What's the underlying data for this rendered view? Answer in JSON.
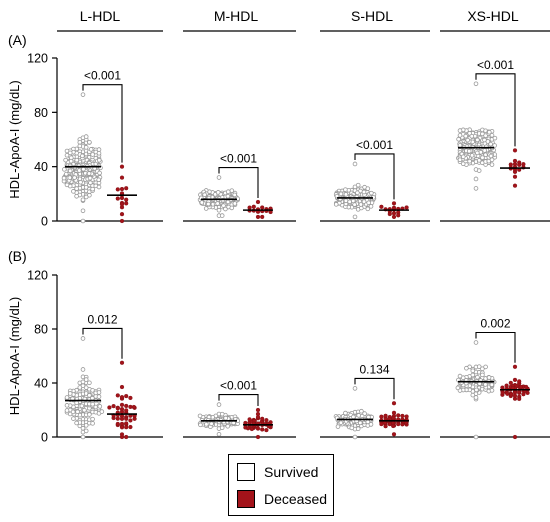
{
  "colors": {
    "survived": "#ffffff",
    "deceased": "#a3131a",
    "outline": "#9a9a9a",
    "axis": "#000000"
  },
  "legend": {
    "survived": "Survived",
    "deceased": "Deceased"
  },
  "chart_data": {
    "type": "scatter",
    "subtype": "grouped-dot-plot",
    "columns": [
      "L-HDL",
      "M-HDL",
      "S-HDL",
      "XS-HDL"
    ],
    "groups": [
      "Survived",
      "Deceased"
    ],
    "ylabel": "HDL-ApoA-I (mg/dL)",
    "ylim": [
      0,
      120
    ],
    "yticks": [
      0,
      40,
      80,
      120
    ],
    "panels": [
      {
        "label": "(A)",
        "cells": [
          {
            "column": "L-HDL",
            "pvalue": "<0.001",
            "survived": {
              "median": 40,
              "n": 260,
              "center": 38,
              "spread": 17,
              "min": 0,
              "max": 93
            },
            "deceased": {
              "median": 19,
              "n": 16,
              "center": 19,
              "spread": 12,
              "min": 0,
              "max": 40
            }
          },
          {
            "column": "M-HDL",
            "pvalue": "<0.001",
            "survived": {
              "median": 16,
              "n": 220,
              "center": 16,
              "spread": 5,
              "min": 4,
              "max": 32
            },
            "deceased": {
              "median": 8,
              "n": 15,
              "center": 8,
              "spread": 3,
              "min": 3,
              "max": 14
            }
          },
          {
            "column": "S-HDL",
            "pvalue": "<0.001",
            "survived": {
              "median": 17,
              "n": 220,
              "center": 17,
              "spread": 6,
              "min": 3,
              "max": 42
            },
            "deceased": {
              "median": 8,
              "n": 15,
              "center": 8,
              "spread": 3,
              "min": 3,
              "max": 13
            }
          },
          {
            "column": "XS-HDL",
            "pvalue": "<0.001",
            "survived": {
              "median": 54,
              "n": 230,
              "center": 54,
              "spread": 12,
              "min": 24,
              "max": 101
            },
            "deceased": {
              "median": 39,
              "n": 16,
              "center": 40,
              "spread": 7,
              "min": 26,
              "max": 52
            }
          }
        ]
      },
      {
        "label": "(B)",
        "cells": [
          {
            "column": "L-HDL",
            "pvalue": "0.012",
            "survived": {
              "median": 27,
              "n": 130,
              "center": 24,
              "spread": 17,
              "min": 0,
              "max": 73
            },
            "deceased": {
              "median": 17,
              "n": 45,
              "center": 18,
              "spread": 15,
              "min": 0,
              "max": 55
            }
          },
          {
            "column": "M-HDL",
            "pvalue": "<0.001",
            "survived": {
              "median": 12,
              "n": 110,
              "center": 12,
              "spread": 4,
              "min": 2,
              "max": 24
            },
            "deceased": {
              "median": 9,
              "n": 45,
              "center": 9,
              "spread": 4,
              "min": 0,
              "max": 20
            }
          },
          {
            "column": "S-HDL",
            "pvalue": "0.134",
            "survived": {
              "median": 13,
              "n": 110,
              "center": 13,
              "spread": 5,
              "min": 0,
              "max": 36
            },
            "deceased": {
              "median": 12,
              "n": 45,
              "center": 12,
              "spread": 4,
              "min": 2,
              "max": 25
            }
          },
          {
            "column": "XS-HDL",
            "pvalue": "0.002",
            "survived": {
              "median": 41,
              "n": 110,
              "center": 41,
              "spread": 9,
              "min": 0,
              "max": 70
            },
            "deceased": {
              "median": 35,
              "n": 45,
              "center": 35,
              "spread": 7,
              "min": 0,
              "max": 52
            }
          }
        ]
      }
    ]
  }
}
